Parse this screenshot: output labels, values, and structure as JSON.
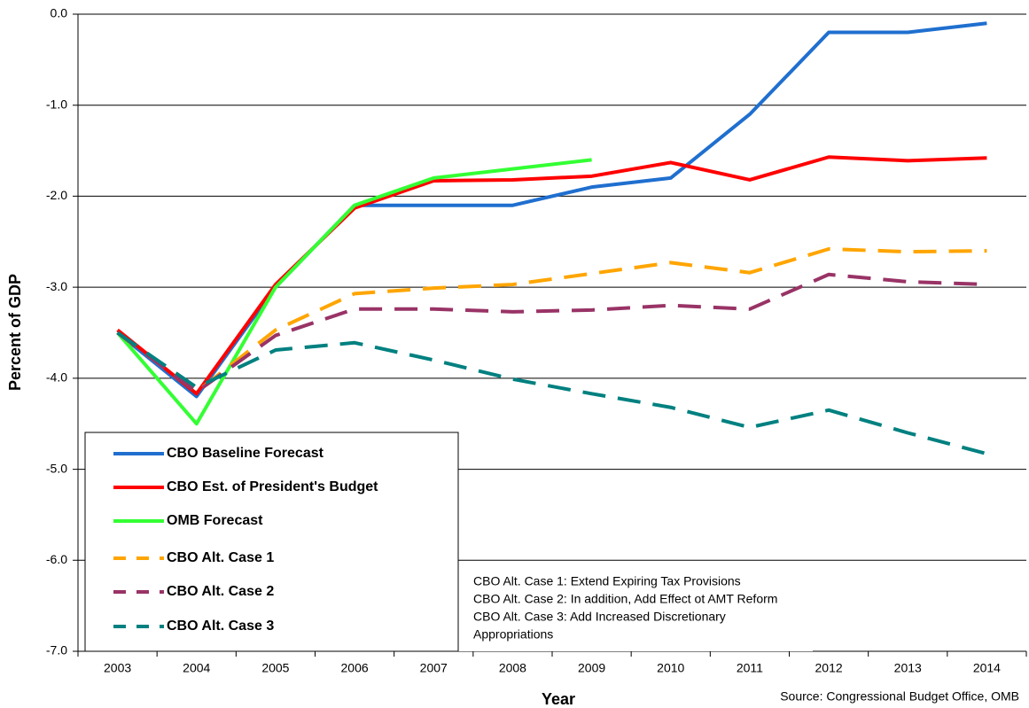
{
  "chart_data": {
    "type": "line",
    "xlabel": "Year",
    "ylabel": "Percent of GDP",
    "categories": [
      "2003",
      "2004",
      "2005",
      "2006",
      "2007",
      "2008",
      "2009",
      "2010",
      "2011",
      "2012",
      "2013",
      "2014"
    ],
    "ylim": [
      -7,
      0
    ],
    "yticks": [
      {
        "value": 0,
        "label": "0.0"
      },
      {
        "value": -1,
        "label": "-1.0"
      },
      {
        "value": -2,
        "label": "-2.0"
      },
      {
        "value": -3,
        "label": "-3.0"
      },
      {
        "value": -4,
        "label": "-4.0"
      },
      {
        "value": -5,
        "label": "-5.0"
      },
      {
        "value": -6,
        "label": "-6.0"
      },
      {
        "value": -7,
        "label": "-7.0"
      }
    ],
    "grid": true,
    "legend": "lower left",
    "series": [
      {
        "name": "CBO Baseline Forecast",
        "color": "#1f6fcf",
        "style": "solid",
        "values": [
          -3.5,
          -4.2,
          -3.0,
          -2.1,
          -2.1,
          -2.1,
          -1.9,
          -1.8,
          -1.1,
          -0.2,
          -0.2,
          -0.1
        ]
      },
      {
        "name": "CBO Est. of President's Budget",
        "color": "#ff0000",
        "style": "solid",
        "values": [
          -3.47,
          -4.17,
          -2.97,
          -2.13,
          -1.83,
          -1.82,
          -1.78,
          -1.63,
          -1.82,
          -1.57,
          -1.61,
          -1.58
        ]
      },
      {
        "name": "OMB Forecast",
        "color": "#33ff33",
        "style": "solid",
        "values": [
          -3.5,
          -4.5,
          -3.0,
          -2.1,
          -1.8,
          -1.7,
          -1.6,
          null,
          null,
          null,
          null,
          null
        ]
      },
      {
        "name": "CBO Alt. Case 1",
        "color": "#ffa500",
        "style": "dashed",
        "values": [
          -3.5,
          -4.15,
          -3.47,
          -3.07,
          -3.01,
          -2.97,
          -2.85,
          -2.73,
          -2.84,
          -2.58,
          -2.61,
          -2.6
        ]
      },
      {
        "name": "CBO Alt. Case 2",
        "color": "#993366",
        "style": "dashed",
        "values": [
          -3.5,
          -4.15,
          -3.53,
          -3.24,
          -3.24,
          -3.27,
          -3.25,
          -3.2,
          -3.24,
          -2.86,
          -2.94,
          -2.97
        ]
      },
      {
        "name": "CBO Alt. Case 3",
        "color": "#008080",
        "style": "dashed",
        "values": [
          -3.5,
          -4.1,
          -3.69,
          -3.61,
          -3.8,
          -4.01,
          -4.17,
          -4.32,
          -4.54,
          -4.35,
          -4.6,
          -4.83
        ]
      }
    ],
    "annotations": [
      "CBO Alt. Case 1:  Extend Expiring Tax Provisions",
      "CBO Alt. Case 2:  In addition, Add Effect ot AMT Reform",
      "CBO Alt. Case 3: Add Increased Discretionary",
      "Appropriations"
    ],
    "source": "Source: Congressional Budget Office, OMB"
  }
}
